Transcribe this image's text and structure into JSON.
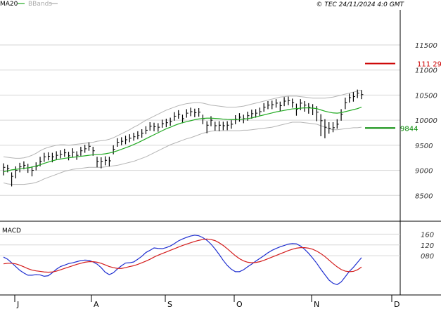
{
  "header": {
    "indicators": [
      {
        "label": "MA20",
        "color": "#22aa22"
      },
      {
        "label": "BBands",
        "color": "#aaaaaa"
      }
    ],
    "copyright": "© TEC 24/11/2024 4:0 GMT"
  },
  "colors": {
    "candles": "#000000",
    "ma20": "#22aa22",
    "bbands": "#b4b4b4",
    "resistance": "#cc0000",
    "support": "#008800",
    "macd": "#1f2fd0",
    "signal": "#d41c1c",
    "grid": "#d6d6d6"
  },
  "chart_data": [
    {
      "type": "ohlc",
      "panel": "price",
      "ylim": [
        8000,
        12200
      ],
      "y_ticks": [
        8500,
        9000,
        9500,
        10000,
        10500,
        11000,
        11500
      ],
      "y_tick_labels": [
        "8500",
        "9000",
        "9500",
        "10000",
        "10500",
        "11000",
        "11500"
      ],
      "x_labels": [
        "J",
        "A",
        "S",
        "O",
        "N",
        "D"
      ],
      "levels": [
        {
          "name": "resistance",
          "value": 11129,
          "label": "111 29"
        },
        {
          "name": "support",
          "value": 9844,
          "label": "9844"
        }
      ],
      "close": [
        9060,
        9040,
        8880,
        9000,
        9070,
        9100,
        9050,
        9000,
        9080,
        9180,
        9270,
        9280,
        9270,
        9300,
        9320,
        9350,
        9290,
        9360,
        9300,
        9390,
        9430,
        9480,
        9390,
        9180,
        9180,
        9200,
        9190,
        9420,
        9560,
        9580,
        9610,
        9640,
        9670,
        9700,
        9740,
        9800,
        9880,
        9870,
        9860,
        9930,
        9950,
        9970,
        10080,
        10120,
        10030,
        10140,
        10170,
        10150,
        10160,
        10030,
        9900,
        10000,
        9890,
        9900,
        9890,
        9900,
        9920,
        10020,
        10060,
        10030,
        10090,
        10130,
        10140,
        10170,
        10260,
        10300,
        10310,
        10340,
        10290,
        10380,
        10390,
        10350,
        10220,
        10340,
        10300,
        10260,
        10240,
        10160,
        9990,
        9860,
        9840,
        9850,
        9920,
        10120,
        10350,
        10450,
        10470,
        10540,
        10510
      ],
      "high": [
        9140,
        9110,
        8960,
        9080,
        9150,
        9180,
        9130,
        9080,
        9160,
        9270,
        9350,
        9360,
        9350,
        9380,
        9400,
        9430,
        9370,
        9440,
        9380,
        9470,
        9510,
        9560,
        9470,
        9270,
        9260,
        9280,
        9270,
        9500,
        9640,
        9660,
        9690,
        9720,
        9750,
        9780,
        9820,
        9880,
        9960,
        9950,
        9940,
        10010,
        10030,
        10050,
        10160,
        10200,
        10110,
        10220,
        10250,
        10230,
        10240,
        10110,
        9980,
        10080,
        9970,
        9980,
        9970,
        9980,
        10000,
        10100,
        10140,
        10110,
        10170,
        10210,
        10220,
        10250,
        10340,
        10380,
        10390,
        10420,
        10370,
        10460,
        10470,
        10430,
        10330,
        10420,
        10380,
        10340,
        10320,
        10280,
        10120,
        10020,
        9960,
        9960,
        10020,
        10220,
        10450,
        10530,
        10560,
        10610,
        10600
      ],
      "low": [
        8900,
        8960,
        8680,
        8840,
        8960,
        9020,
        8950,
        8880,
        9000,
        9080,
        9170,
        9200,
        9160,
        9210,
        9240,
        9270,
        9200,
        9260,
        9210,
        9290,
        9350,
        9390,
        9290,
        9060,
        9040,
        9100,
        9080,
        9320,
        9470,
        9500,
        9520,
        9560,
        9590,
        9620,
        9650,
        9720,
        9790,
        9780,
        9770,
        9850,
        9860,
        9890,
        9990,
        10030,
        9940,
        10050,
        10080,
        10060,
        10070,
        9920,
        9740,
        9880,
        9790,
        9780,
        9800,
        9800,
        9830,
        9920,
        9970,
        9940,
        9990,
        10030,
        10050,
        10080,
        10170,
        10220,
        10220,
        10250,
        10180,
        10280,
        10300,
        10250,
        10090,
        10200,
        10170,
        10130,
        10100,
        9980,
        9680,
        9640,
        9730,
        9760,
        9830,
        9990,
        10220,
        10350,
        10370,
        10440,
        10420
      ],
      "ma20": [
        8970,
        8990,
        9010,
        9020,
        9030,
        9040,
        9050,
        9065,
        9085,
        9110,
        9140,
        9165,
        9190,
        9210,
        9225,
        9240,
        9250,
        9260,
        9270,
        9280,
        9290,
        9300,
        9310,
        9315,
        9320,
        9330,
        9345,
        9365,
        9390,
        9420,
        9450,
        9480,
        9515,
        9550,
        9590,
        9630,
        9670,
        9710,
        9750,
        9790,
        9830,
        9860,
        9895,
        9925,
        9950,
        9970,
        9990,
        10010,
        10025,
        10035,
        10040,
        10040,
        10035,
        10030,
        10020,
        10015,
        10012,
        10012,
        10015,
        10020,
        10030,
        10045,
        10065,
        10085,
        10105,
        10125,
        10145,
        10165,
        10180,
        10195,
        10210,
        10225,
        10230,
        10240,
        10245,
        10245,
        10240,
        10230,
        10205,
        10180,
        10160,
        10145,
        10140,
        10150,
        10170,
        10190,
        10210,
        10230,
        10260
      ],
      "bb_upper": [
        9270,
        9260,
        9250,
        9240,
        9240,
        9250,
        9270,
        9300,
        9340,
        9390,
        9430,
        9460,
        9480,
        9500,
        9510,
        9510,
        9500,
        9510,
        9520,
        9530,
        9540,
        9550,
        9560,
        9580,
        9590,
        9600,
        9620,
        9650,
        9690,
        9730,
        9770,
        9810,
        9860,
        9900,
        9950,
        10000,
        10040,
        10080,
        10120,
        10160,
        10200,
        10230,
        10260,
        10290,
        10310,
        10330,
        10340,
        10350,
        10350,
        10340,
        10320,
        10300,
        10290,
        10280,
        10270,
        10260,
        10260,
        10260,
        10270,
        10280,
        10300,
        10320,
        10340,
        10360,
        10380,
        10400,
        10420,
        10440,
        10460,
        10470,
        10480,
        10480,
        10480,
        10470,
        10460,
        10450,
        10440,
        10440,
        10440,
        10440,
        10450,
        10460,
        10480,
        10500,
        10520,
        10540,
        10560,
        10580,
        10600
      ],
      "bb_lower": [
        8750,
        8730,
        8720,
        8720,
        8720,
        8720,
        8730,
        8740,
        8760,
        8790,
        8830,
        8860,
        8890,
        8920,
        8950,
        8980,
        9000,
        9020,
        9030,
        9040,
        9050,
        9060,
        9060,
        9060,
        9060,
        9070,
        9080,
        9090,
        9100,
        9120,
        9140,
        9160,
        9180,
        9210,
        9240,
        9270,
        9310,
        9350,
        9390,
        9430,
        9470,
        9510,
        9540,
        9570,
        9600,
        9630,
        9650,
        9680,
        9710,
        9740,
        9760,
        9780,
        9790,
        9790,
        9790,
        9790,
        9790,
        9790,
        9790,
        9800,
        9800,
        9810,
        9820,
        9830,
        9840,
        9850,
        9860,
        9880,
        9900,
        9920,
        9940,
        9960,
        9960,
        9960,
        9950,
        9940,
        9930,
        9920,
        9890,
        9860,
        9830,
        9810,
        9810,
        9820,
        9830,
        9840,
        9850,
        9850,
        9860
      ]
    },
    {
      "type": "line",
      "panel": "macd",
      "title": "MACD",
      "ylim": [
        -60,
        200
      ],
      "y_ticks": [
        80,
        120,
        160
      ],
      "y_tick_labels": [
        "080",
        "120",
        "160"
      ],
      "series": [
        {
          "name": "macd",
          "values": [
            75,
            67,
            54,
            40,
            26,
            16,
            8,
            8,
            10,
            9,
            4,
            6,
            17,
            30,
            40,
            45,
            51,
            54,
            58,
            62,
            64,
            63,
            57,
            49,
            36,
            19,
            10,
            17,
            31,
            43,
            53,
            54,
            57,
            67,
            78,
            92,
            100,
            109,
            107,
            106,
            110,
            116,
            125,
            135,
            142,
            148,
            153,
            156,
            154,
            147,
            137,
            123,
            105,
            85,
            63,
            44,
            30,
            21,
            21,
            28,
            39,
            49,
            60,
            70,
            80,
            91,
            100,
            107,
            113,
            118,
            123,
            125,
            124,
            116,
            104,
            89,
            71,
            52,
            30,
            10,
            -10,
            -22,
            -27,
            -17,
            2,
            22,
            37,
            55,
            73
          ]
        },
        {
          "name": "signal",
          "values": [
            50,
            52,
            52,
            50,
            45,
            39,
            32,
            27,
            24,
            22,
            20,
            19,
            20,
            23,
            28,
            33,
            38,
            43,
            48,
            52,
            56,
            58,
            58,
            56,
            52,
            46,
            40,
            36,
            33,
            33,
            36,
            40,
            43,
            48,
            54,
            60,
            67,
            75,
            82,
            88,
            94,
            100,
            106,
            112,
            118,
            123,
            128,
            133,
            137,
            140,
            142,
            140,
            136,
            128,
            118,
            106,
            93,
            80,
            69,
            61,
            56,
            54,
            55,
            58,
            63,
            69,
            75,
            81,
            87,
            93,
            99,
            104,
            108,
            110,
            110,
            108,
            104,
            97,
            88,
            77,
            64,
            51,
            39,
            29,
            23,
            21,
            22,
            28,
            38
          ]
        }
      ]
    }
  ]
}
